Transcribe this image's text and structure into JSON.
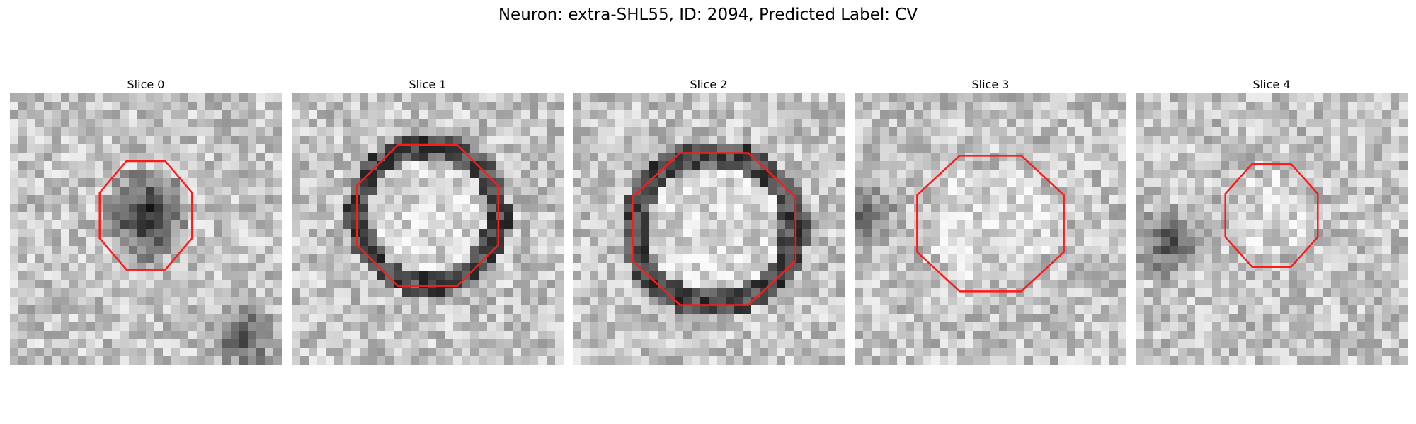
{
  "title": "Neuron: extra-SHL55, ID: 2094, Predicted Label: CV",
  "colors": {
    "contour": "#ff1a1a",
    "image_colormap": "grayscale"
  },
  "panels": [
    {
      "label": "Slice 0",
      "seed": 11,
      "dark_ring": false,
      "center_dark": true
    },
    {
      "label": "Slice 1",
      "seed": 23,
      "dark_ring": true,
      "center_dark": false
    },
    {
      "label": "Slice 2",
      "seed": 37,
      "dark_ring": true,
      "center_dark": false
    },
    {
      "label": "Slice 3",
      "seed": 49,
      "dark_ring": false,
      "center_dark": false
    },
    {
      "label": "Slice 4",
      "seed": 61,
      "dark_ring": false,
      "center_dark": false
    }
  ]
}
